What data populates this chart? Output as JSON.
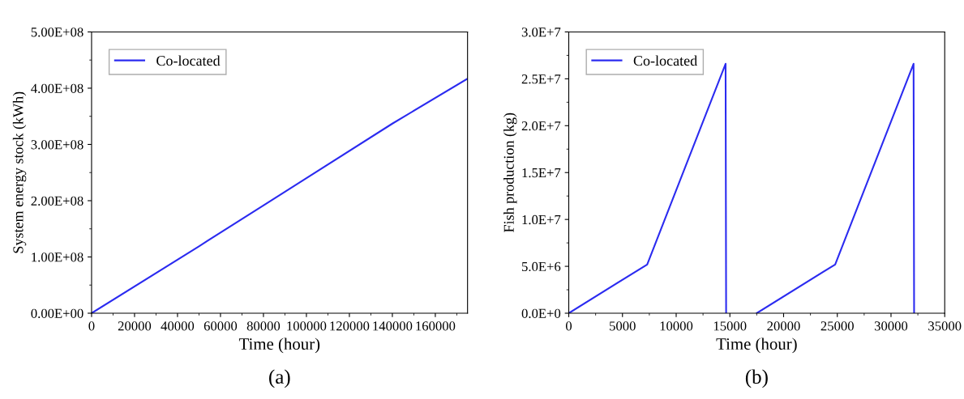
{
  "chart_data": [
    {
      "type": "line",
      "xlabel": "Time (hour)",
      "ylabel": "System energy stock (kWh)",
      "annotations": [
        "(a)"
      ],
      "legend": "top left",
      "grid": false,
      "marker": "none",
      "line_style": "solid",
      "series": [
        {
          "name": "Co-located",
          "color": "#2b2bf0",
          "x": [
            0,
            50000,
            100000,
            140000,
            175000
          ],
          "values": [
            0,
            119000000,
            240000000,
            337000000,
            417000000
          ]
        }
      ],
      "xlim": [
        0,
        175000
      ],
      "xticks": [
        0,
        20000,
        40000,
        60000,
        80000,
        100000,
        120000,
        140000,
        160000
      ],
      "ylim": [
        0,
        500000000
      ],
      "yticks": [
        {
          "value": 0,
          "label": "0.00E+00"
        },
        {
          "value": 100000000,
          "label": "1.00E+08"
        },
        {
          "value": 200000000,
          "label": "2.00E+08"
        },
        {
          "value": 300000000,
          "label": "3.00E+08"
        },
        {
          "value": 400000000,
          "label": "4.00E+08"
        },
        {
          "value": 500000000,
          "label": "5.00E+08"
        }
      ]
    },
    {
      "type": "line",
      "xlabel": "Time (hour)",
      "ylabel": "Fish production (kg)",
      "annotations": [
        "(b)"
      ],
      "legend": "top left",
      "grid": false,
      "marker": "none",
      "line_style": "solid",
      "series": [
        {
          "name": "Co-located",
          "color": "#2b2bf0",
          "x": [
            0,
            7300,
            14600,
            14650,
            16000,
            17500,
            24800,
            32100,
            32150
          ],
          "values": [
            0,
            5200000,
            26600000,
            0,
            null,
            0,
            5200000,
            26600000,
            0
          ]
        }
      ],
      "xlim": [
        0,
        35000
      ],
      "xticks": [
        0,
        5000,
        10000,
        15000,
        20000,
        25000,
        30000,
        35000
      ],
      "ylim": [
        0,
        30000000
      ],
      "yticks": [
        {
          "value": 0,
          "label": "0.0E+0"
        },
        {
          "value": 5000000,
          "label": "5.0E+6"
        },
        {
          "value": 10000000,
          "label": "1.0E+7"
        },
        {
          "value": 15000000,
          "label": "1.5E+7"
        },
        {
          "value": 20000000,
          "label": "2.0E+7"
        },
        {
          "value": 25000000,
          "label": "2.5E+7"
        },
        {
          "value": 30000000,
          "label": "3.0E+7"
        }
      ]
    }
  ]
}
